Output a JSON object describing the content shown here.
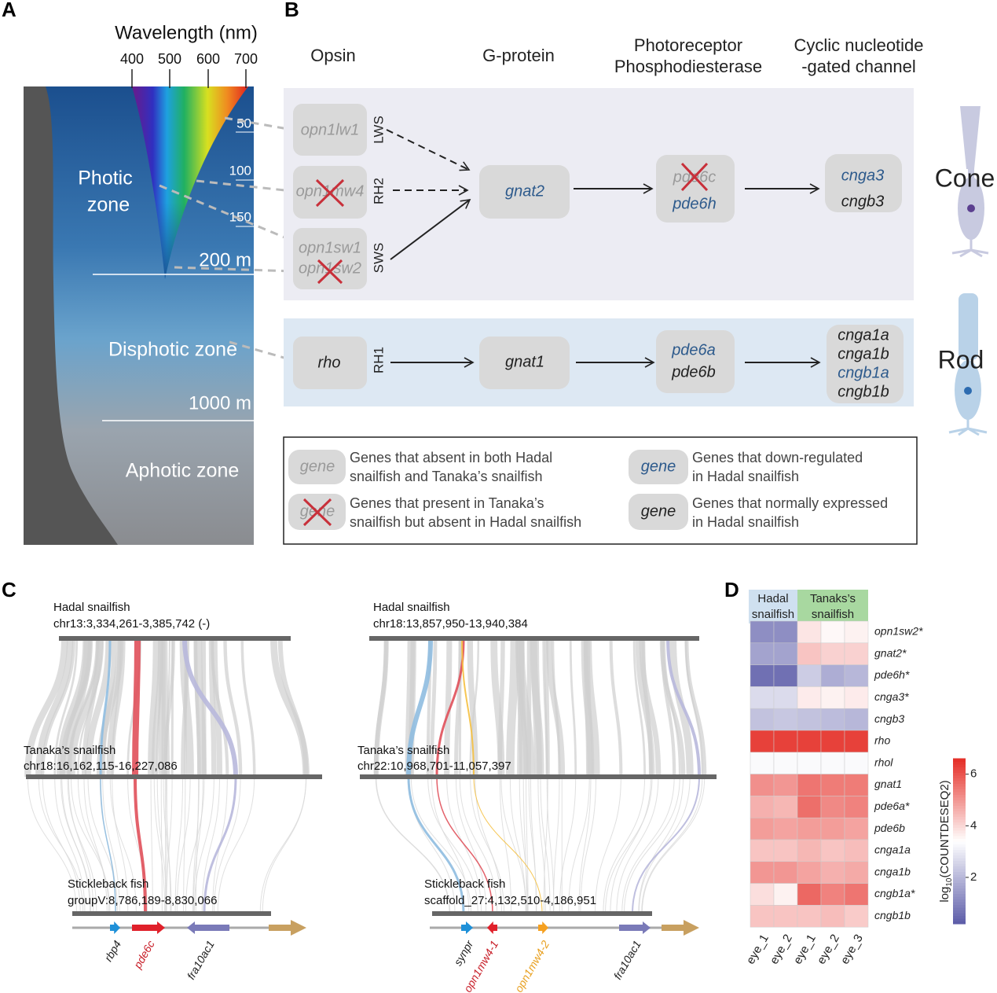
{
  "panel_labels": [
    "A",
    "B",
    "C",
    "D"
  ],
  "panel_a": {
    "axis_title": "Wavelength (nm)",
    "wavelength_ticks": [
      400,
      500,
      600,
      700
    ],
    "depth_ticks": [
      50,
      100,
      150
    ],
    "depth_markers": [
      "200 m",
      "1000 m"
    ],
    "photic_zone": [
      "Photic",
      "zone"
    ],
    "disphotic_zone": "Disphotic zone",
    "aphotic_zone": "Aphotic zone"
  },
  "panel_b": {
    "headers": {
      "opsin": "Opsin",
      "g_protein": "G-protein",
      "pde": [
        "Photoreceptor",
        "Phosphodiesterase"
      ],
      "cng": [
        "Cyclic nucleotide",
        "-gated channel"
      ]
    },
    "classes": [
      "LWS",
      "RH2",
      "SWS",
      "RH1"
    ],
    "cone": {
      "label": "Cone",
      "opsins": [
        "opn1lw1",
        "opn1mw4",
        "opn1sw1",
        "opn1sw2"
      ],
      "g_protein": "gnat2",
      "pde": [
        "pde6c",
        "pde6h"
      ],
      "cng": [
        "cnga3",
        "cngb3"
      ]
    },
    "rod": {
      "label": "Rod",
      "opsins": [
        "rho"
      ],
      "g_protein": "gnat1",
      "pde": [
        "pde6a",
        "pde6b"
      ],
      "cng": [
        "cnga1a",
        "cnga1b",
        "cngb1a",
        "cngb1b"
      ]
    },
    "legend": [
      {
        "symbol": "gene",
        "text": [
          "Genes that absent in both Hadal",
          "snailfish and Tanaka’s snailfish"
        ]
      },
      {
        "symbol": "gene",
        "text": [
          "Genes that present in Tanaka’s",
          "snailfish but absent in Hadal snailfish"
        ]
      },
      {
        "symbol": "gene",
        "text": [
          "Genes that down-regulated",
          "in Hadal snailfish"
        ]
      },
      {
        "symbol": "gene",
        "text": [
          "Genes that normally expressed",
          "in Hadal snailfish"
        ]
      }
    ]
  },
  "panel_c": [
    {
      "top_species": "Hadal snailfish",
      "top_coord": "chr13:3,334,261-3,385,742 (-)",
      "mid_species": "Tanaka’s snailfish",
      "mid_coord": "chr18:16,162,115-16,227,086",
      "bottom_species": "Stickleback fish",
      "bottom_coord": "groupV:8,786,189-8,830,066",
      "genes": [
        "rbp4",
        "pde6c",
        "fra10ac1"
      ]
    },
    {
      "top_species": "Hadal snailfish",
      "top_coord": "chr18:13,857,950-13,940,384",
      "mid_species": "Tanaka’s snailfish",
      "mid_coord": "chr22:10,968,701-11,057,397",
      "bottom_species": "Stickleback fish",
      "bottom_coord": "scaffold_27:4,132,510-4,186,951",
      "genes": [
        "synpr",
        "opn1mw4-1",
        "opn1mw4-2",
        "fra10ac1"
      ]
    }
  ],
  "chart_data": {
    "type": "heatmap",
    "groups": [
      "Hadal snailfish",
      "Tanaks’s snailfish"
    ],
    "columns": [
      "eye_1",
      "eye_2",
      "eye_1",
      "eye_2",
      "eye_3"
    ],
    "rows": [
      "opn1sw2*",
      "gnat2*",
      "pde6h*",
      "cnga3*",
      "cngb3",
      "rho",
      "rhol",
      "gnat1",
      "pde6a*",
      "pde6b",
      "cnga1a",
      "cnga1b",
      "cngb1a*",
      "cngb1b"
    ],
    "values": [
      [
        1.2,
        1.2,
        3.8,
        3.5,
        3.6
      ],
      [
        1.6,
        1.6,
        4.3,
        4.1,
        4.1
      ],
      [
        0.6,
        0.6,
        2.4,
        1.8,
        2.0
      ],
      [
        2.7,
        2.7,
        3.7,
        3.6,
        3.7
      ],
      [
        2.2,
        2.3,
        2.2,
        2.1,
        2.0
      ],
      [
        6.3,
        6.3,
        6.3,
        6.3,
        6.3
      ],
      [
        3.3,
        3.3,
        3.3,
        3.3,
        3.3
      ],
      [
        5.1,
        5.0,
        5.5,
        5.4,
        5.4
      ],
      [
        4.6,
        4.5,
        5.6,
        5.2,
        5.3
      ],
      [
        4.9,
        4.8,
        4.9,
        4.9,
        4.8
      ],
      [
        4.3,
        4.3,
        4.5,
        4.3,
        4.4
      ],
      [
        5.0,
        5.0,
        4.8,
        4.6,
        4.7
      ],
      [
        3.9,
        3.6,
        5.7,
        5.3,
        5.5
      ],
      [
        4.3,
        4.3,
        4.3,
        4.4,
        4.2
      ]
    ],
    "clim": [
      0.2,
      6.6
    ],
    "colors": [
      "#5b5ba8",
      "#ffffff",
      "#e52d26"
    ],
    "cticks": [
      2,
      4,
      6
    ],
    "colorbar_label": [
      "log",
      "10",
      "(COUNTDESEQ2)"
    ]
  }
}
